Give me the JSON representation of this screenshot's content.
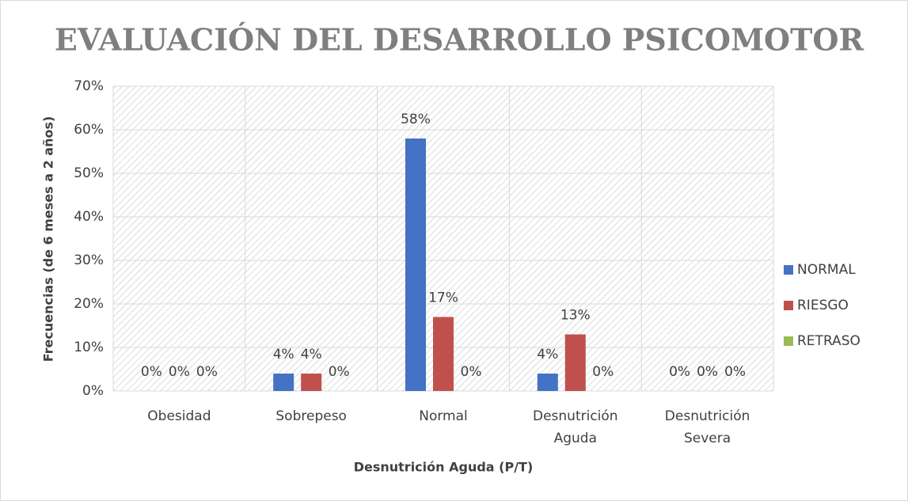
{
  "chart_data": {
    "type": "bar",
    "title": "EVALUACIÓN DEL DESARROLLO PSICOMOTOR",
    "x_label": "Desnutrición Aguda (P/T)",
    "y_label": "Frecuencias (de 6 meses a 2 años)",
    "categories": [
      "Obesidad",
      "Sobrepeso",
      "Normal",
      "Desnutrición Aguda",
      "Desnutrición Severa"
    ],
    "series": [
      {
        "name": "NORMAL",
        "color": "#4472c4",
        "values": [
          0,
          4,
          58,
          4,
          0
        ],
        "value_labels": [
          "0%",
          "4%",
          "58%",
          "4%",
          "0%"
        ]
      },
      {
        "name": "RIESGO",
        "color": "#c0504d",
        "values": [
          0,
          4,
          17,
          13,
          0
        ],
        "value_labels": [
          "0%",
          "4%",
          "17%",
          "13%",
          "0%"
        ]
      },
      {
        "name": "RETRASO",
        "color": "#9bbb59",
        "values": [
          0,
          0,
          0,
          0,
          0
        ],
        "value_labels": [
          "0%",
          "0%",
          "0%",
          "0%",
          "0%"
        ]
      }
    ],
    "ylim": [
      0,
      70
    ],
    "yticks": [
      {
        "value": 0,
        "label": "0%"
      },
      {
        "value": 10,
        "label": "10%"
      },
      {
        "value": 20,
        "label": "20%"
      },
      {
        "value": 30,
        "label": "30%"
      },
      {
        "value": 40,
        "label": "40%"
      },
      {
        "value": 50,
        "label": "50%"
      },
      {
        "value": 60,
        "label": "60%"
      },
      {
        "value": 70,
        "label": "70%"
      }
    ],
    "grid": true,
    "legend": "right"
  }
}
